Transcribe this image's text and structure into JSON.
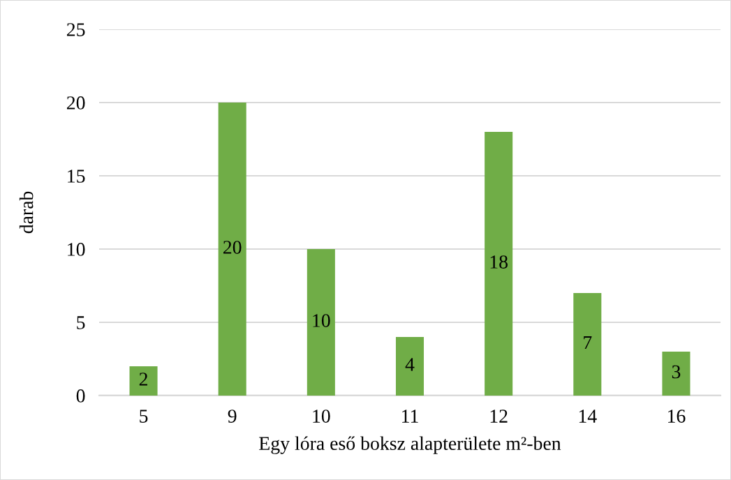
{
  "chart_data": {
    "type": "bar",
    "categories": [
      "5",
      "9",
      "10",
      "11",
      "12",
      "14",
      "16"
    ],
    "values": [
      2,
      20,
      10,
      4,
      18,
      7,
      3
    ],
    "color": "#70ad47",
    "xlabel": "Egy lóra eső boksz alapterülete m²-ben",
    "ylabel": "darab",
    "ylim": [
      0,
      25
    ],
    "yticks": [
      0,
      5,
      10,
      15,
      20,
      25
    ],
    "grid": "y",
    "data_labels": true
  }
}
